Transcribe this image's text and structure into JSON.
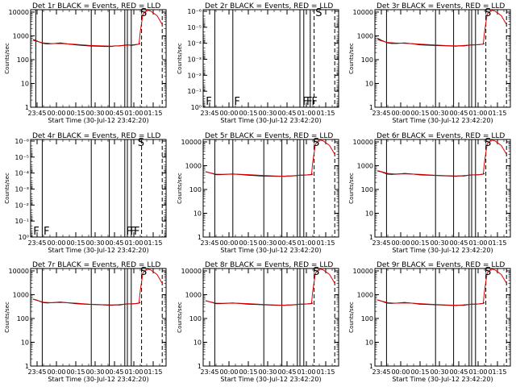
{
  "colors": {
    "events": "#000000",
    "lld": "#e00000",
    "axes": "#000000"
  },
  "chart_data": [
    {
      "type": "line",
      "title": "Det 1r BLACK = Events, RED = LLD",
      "xlabel": "Start Time (30-Jul-12 23:42:20)",
      "ylabel": "Counts/sec",
      "x_tick_labels": [
        "23:45",
        "00:00",
        "00:15",
        "00:30",
        "00:45",
        "01:00",
        "01:15"
      ],
      "y_tick_labels": [
        "1",
        "10",
        "100",
        "1000",
        "10000"
      ],
      "ylim_exp": [
        0,
        4.1
      ],
      "x_unit": "minutes after 23:45",
      "event_lines": [
        -1,
        4,
        42,
        56,
        68,
        70,
        73
      ],
      "dashed_lines": [
        81,
        97
      ],
      "markers": [
        {
          "label": "S",
          "x": 80
        }
      ],
      "series": [
        {
          "name": "Events",
          "x": [
            -3,
            0,
            3,
            5,
            8,
            12,
            18,
            25,
            30,
            40,
            52,
            58,
            60,
            62,
            64,
            67,
            70,
            73,
            76,
            79,
            80
          ],
          "y": [
            700,
            600,
            520,
            480,
            460,
            470,
            500,
            450,
            420,
            380,
            360,
            360,
            380,
            380,
            380,
            400,
            420,
            400,
            420,
            450,
            480
          ]
        },
        {
          "name": "LLD",
          "x": [
            -3,
            0,
            5,
            10,
            20,
            30,
            40,
            50,
            58,
            63,
            68,
            73,
            76,
            79,
            80,
            82,
            85,
            88,
            93,
            97
          ],
          "y": [
            650,
            580,
            500,
            480,
            470,
            440,
            400,
            380,
            370,
            380,
            400,
            420,
            430,
            450,
            1500,
            8000,
            12000,
            11000,
            7000,
            3000
          ]
        }
      ]
    },
    {
      "type": "line",
      "title": "Det 2r BLACK = Events, RED = LLD",
      "xlabel": "Start Time (30-Jul-12 23:42:20)",
      "ylabel": "Counts/sec",
      "x_tick_labels": [
        "23:45",
        "00:00",
        "00:15",
        "00:30",
        "00:45",
        "01:00",
        "01:15"
      ],
      "y_tick_labels": [
        "10⁻⁶",
        "10⁻⁵",
        "10⁻⁴",
        "10⁻³",
        "10⁻²",
        "10⁻¹",
        "10⁰"
      ],
      "ylim_exp": [
        -6,
        0.1
      ],
      "inverted_labels": true,
      "x_unit": "minutes after 23:45",
      "event_lines": [
        4,
        18,
        70,
        73,
        78
      ],
      "dashed_lines": [
        81,
        97
      ],
      "markers": [
        {
          "label": "F",
          "x": -3
        },
        {
          "label": "F",
          "x": 19
        },
        {
          "label": "F",
          "x": 72
        },
        {
          "label": "F",
          "x": 75
        },
        {
          "label": "F",
          "x": 79
        },
        {
          "label": "S",
          "x": 82
        }
      ],
      "series": []
    },
    {
      "type": "line",
      "title": "Det 3r BLACK = Events, RED = LLD",
      "xlabel": "Start Time (30-Jul-12 23:42:20)",
      "ylabel": "Counts/sec",
      "x_tick_labels": [
        "23:45",
        "00:00",
        "00:15",
        "00:30",
        "00:45",
        "01:00",
        "01:15"
      ],
      "y_tick_labels": [
        "1",
        "10",
        "100",
        "1000",
        "10000"
      ],
      "ylim_exp": [
        0,
        4.1
      ],
      "x_unit": "minutes after 23:45",
      "event_lines": [
        4,
        42,
        56,
        68,
        70,
        73
      ],
      "dashed_lines": [
        81,
        97
      ],
      "markers": [
        {
          "label": "S",
          "x": 80
        }
      ],
      "series": [
        {
          "name": "Events",
          "x": [
            -3,
            0,
            3,
            5,
            8,
            12,
            18,
            25,
            30,
            40,
            52,
            58,
            60,
            62,
            64,
            67,
            70,
            73,
            76,
            79,
            80
          ],
          "y": [
            800,
            650,
            560,
            500,
            480,
            480,
            500,
            460,
            420,
            400,
            380,
            370,
            380,
            380,
            380,
            400,
            420,
            420,
            430,
            450,
            480
          ]
        },
        {
          "name": "LLD",
          "x": [
            -3,
            0,
            5,
            10,
            20,
            30,
            40,
            50,
            58,
            63,
            68,
            73,
            76,
            79,
            80,
            82,
            85,
            88,
            93,
            97
          ],
          "y": [
            700,
            620,
            520,
            500,
            480,
            450,
            420,
            390,
            380,
            390,
            410,
            420,
            430,
            450,
            1500,
            8000,
            12000,
            11000,
            7000,
            3000
          ]
        }
      ]
    },
    {
      "type": "line",
      "title": "Det 4r BLACK = Events, RED = LLD",
      "xlabel": "Start Time (30-Jul-12 23:42:20)",
      "ylabel": "Counts/sec",
      "x_tick_labels": [
        "23:45",
        "00:00",
        "00:15",
        "00:30",
        "00:45",
        "01:00",
        "01:15"
      ],
      "y_tick_labels": [
        "10⁻⁶",
        "10⁻⁵",
        "10⁻⁴",
        "10⁻³",
        "10⁻²",
        "10⁻¹",
        "10⁰"
      ],
      "ylim_exp": [
        -6,
        0.1
      ],
      "inverted_labels": true,
      "x_unit": "minutes after 23:45",
      "event_lines": [
        4,
        42,
        56,
        68,
        70,
        73
      ],
      "dashed_lines": [
        81,
        97
      ],
      "markers": [
        {
          "label": "F",
          "x": -3
        },
        {
          "label": "F",
          "x": 5
        },
        {
          "label": "F",
          "x": 69
        },
        {
          "label": "F",
          "x": 72
        },
        {
          "label": "F",
          "x": 75
        },
        {
          "label": "S",
          "x": 78
        }
      ],
      "series": []
    },
    {
      "type": "line",
      "title": "Det 5r BLACK = Events, RED = LLD",
      "xlabel": "Start Time (30-Jul-12 23:42:20)",
      "ylabel": "Counts/sec",
      "x_tick_labels": [
        "23:45",
        "00:00",
        "00:15",
        "00:30",
        "00:45",
        "01:00",
        "01:15"
      ],
      "y_tick_labels": [
        "1",
        "10",
        "100",
        "1000",
        "10000"
      ],
      "ylim_exp": [
        0,
        4.1
      ],
      "x_unit": "minutes after 23:45",
      "event_lines": [
        4,
        18,
        42,
        56,
        68,
        70,
        73
      ],
      "dashed_lines": [
        81,
        97
      ],
      "markers": [
        {
          "label": "S",
          "x": 80
        }
      ],
      "series": [
        {
          "name": "Events",
          "x": [
            -3,
            0,
            3,
            5,
            8,
            12,
            18,
            25,
            30,
            40,
            52,
            58,
            60,
            62,
            64,
            67,
            70,
            73,
            76,
            79,
            80
          ],
          "y": [
            550,
            500,
            450,
            420,
            420,
            430,
            450,
            420,
            400,
            370,
            360,
            360,
            370,
            370,
            370,
            380,
            400,
            400,
            410,
            420,
            450
          ]
        },
        {
          "name": "LLD",
          "x": [
            -3,
            0,
            5,
            10,
            20,
            30,
            40,
            50,
            58,
            63,
            68,
            73,
            76,
            79,
            80,
            82,
            85,
            88,
            93,
            97
          ],
          "y": [
            560,
            500,
            440,
            430,
            440,
            420,
            390,
            370,
            360,
            370,
            390,
            400,
            410,
            430,
            1500,
            8000,
            12000,
            11000,
            7000,
            3000
          ]
        }
      ]
    },
    {
      "type": "line",
      "title": "Det 6r BLACK = Events, RED = LLD",
      "xlabel": "Start Time (30-Jul-12 23:42:20)",
      "ylabel": "Counts/sec",
      "x_tick_labels": [
        "23:45",
        "00:00",
        "00:15",
        "00:30",
        "00:45",
        "01:00",
        "01:15"
      ],
      "y_tick_labels": [
        "1",
        "10",
        "100",
        "1000",
        "10000"
      ],
      "ylim_exp": [
        0,
        4.1
      ],
      "x_unit": "minutes after 23:45",
      "event_lines": [
        4,
        42,
        56,
        68,
        70,
        73
      ],
      "dashed_lines": [
        81,
        97
      ],
      "markers": [
        {
          "label": "S",
          "x": 80
        }
      ],
      "series": [
        {
          "name": "Events",
          "x": [
            -3,
            0,
            3,
            5,
            8,
            12,
            18,
            25,
            30,
            40,
            52,
            58,
            60,
            62,
            64,
            67,
            70,
            73,
            76,
            79,
            80
          ],
          "y": [
            600,
            550,
            480,
            440,
            430,
            440,
            470,
            440,
            410,
            390,
            370,
            360,
            370,
            370,
            370,
            390,
            410,
            410,
            420,
            440,
            470
          ]
        },
        {
          "name": "LLD",
          "x": [
            -3,
            0,
            5,
            10,
            20,
            30,
            40,
            50,
            58,
            63,
            68,
            73,
            76,
            79,
            80,
            82,
            85,
            88,
            93,
            97
          ],
          "y": [
            620,
            560,
            470,
            450,
            450,
            430,
            400,
            380,
            370,
            380,
            400,
            410,
            420,
            440,
            1500,
            8000,
            12000,
            11000,
            7000,
            3000
          ]
        }
      ]
    },
    {
      "type": "line",
      "title": "Det 7r BLACK = Events, RED = LLD",
      "xlabel": "Start Time (30-Jul-12 23:42:20)",
      "ylabel": "Counts/sec",
      "x_tick_labels": [
        "23:45",
        "00:00",
        "00:15",
        "00:30",
        "00:45",
        "01:00",
        "01:15"
      ],
      "y_tick_labels": [
        "1",
        "10",
        "100",
        "1000",
        "10000"
      ],
      "ylim_exp": [
        0,
        4.1
      ],
      "x_unit": "minutes after 23:45",
      "event_lines": [
        4,
        42,
        56,
        68,
        70,
        73
      ],
      "dashed_lines": [
        81,
        97
      ],
      "markers": [
        {
          "label": "S",
          "x": 80
        }
      ],
      "series": [
        {
          "name": "Events",
          "x": [
            -3,
            0,
            3,
            5,
            8,
            12,
            18,
            25,
            30,
            40,
            52,
            58,
            60,
            62,
            64,
            67,
            70,
            73,
            76,
            79,
            80
          ],
          "y": [
            650,
            580,
            500,
            460,
            450,
            460,
            490,
            450,
            420,
            390,
            370,
            360,
            370,
            370,
            370,
            390,
            410,
            410,
            420,
            440,
            470
          ]
        },
        {
          "name": "LLD",
          "x": [
            -3,
            0,
            5,
            10,
            20,
            30,
            40,
            50,
            58,
            63,
            68,
            73,
            76,
            79,
            80,
            82,
            85,
            88,
            93,
            97
          ],
          "y": [
            640,
            570,
            480,
            460,
            470,
            440,
            400,
            380,
            370,
            380,
            400,
            410,
            420,
            440,
            1500,
            8000,
            12000,
            11000,
            7000,
            3000
          ]
        }
      ]
    },
    {
      "type": "line",
      "title": "Det 8r BLACK = Events, RED = LLD",
      "xlabel": "Start Time (30-Jul-12 23:42:20)",
      "ylabel": "Counts/sec",
      "x_tick_labels": [
        "23:45",
        "00:00",
        "00:15",
        "00:30",
        "00:45",
        "01:00",
        "01:15"
      ],
      "y_tick_labels": [
        "1",
        "10",
        "100",
        "1000",
        "10000"
      ],
      "ylim_exp": [
        0,
        4.1
      ],
      "x_unit": "minutes after 23:45",
      "event_lines": [
        4,
        42,
        56,
        68,
        70,
        73
      ],
      "dashed_lines": [
        81,
        97
      ],
      "markers": [
        {
          "label": "S",
          "x": 80
        }
      ],
      "series": [
        {
          "name": "Events",
          "x": [
            -3,
            0,
            3,
            5,
            8,
            12,
            18,
            25,
            30,
            40,
            52,
            58,
            60,
            62,
            64,
            67,
            70,
            73,
            76,
            79,
            80
          ],
          "y": [
            550,
            500,
            450,
            420,
            420,
            430,
            450,
            420,
            400,
            380,
            360,
            360,
            370,
            370,
            370,
            380,
            400,
            400,
            410,
            420,
            450
          ]
        },
        {
          "name": "LLD",
          "x": [
            -3,
            0,
            5,
            10,
            20,
            30,
            40,
            50,
            58,
            63,
            68,
            73,
            76,
            79,
            80,
            82,
            85,
            88,
            93,
            97
          ],
          "y": [
            560,
            500,
            440,
            430,
            440,
            420,
            390,
            370,
            360,
            370,
            390,
            400,
            410,
            430,
            1500,
            8000,
            12000,
            11000,
            7000,
            3000
          ]
        }
      ]
    },
    {
      "type": "line",
      "title": "Det 9r BLACK = Events, RED = LLD",
      "xlabel": "Start Time (30-Jul-12 23:42:20)",
      "ylabel": "Counts/sec",
      "x_tick_labels": [
        "23:45",
        "00:00",
        "00:15",
        "00:30",
        "00:45",
        "01:00",
        "01:15"
      ],
      "y_tick_labels": [
        "1",
        "10",
        "100",
        "1000",
        "10000"
      ],
      "ylim_exp": [
        0,
        4.1
      ],
      "x_unit": "minutes after 23:45",
      "event_lines": [
        4,
        42,
        56,
        68,
        70,
        73
      ],
      "dashed_lines": [
        81,
        97
      ],
      "markers": [
        {
          "label": "S",
          "x": 80
        }
      ],
      "series": [
        {
          "name": "Events",
          "x": [
            -3,
            0,
            3,
            5,
            8,
            12,
            18,
            25,
            30,
            40,
            52,
            58,
            60,
            62,
            64,
            67,
            70,
            73,
            76,
            79,
            80
          ],
          "y": [
            600,
            540,
            470,
            440,
            430,
            440,
            470,
            430,
            400,
            380,
            360,
            350,
            360,
            360,
            360,
            380,
            400,
            400,
            410,
            430,
            460
          ]
        },
        {
          "name": "LLD",
          "x": [
            -3,
            0,
            5,
            10,
            20,
            30,
            40,
            50,
            58,
            63,
            68,
            73,
            76,
            79,
            80,
            82,
            85,
            88,
            93,
            97
          ],
          "y": [
            600,
            540,
            460,
            440,
            450,
            420,
            390,
            370,
            360,
            370,
            390,
            400,
            410,
            430,
            1500,
            8000,
            12000,
            11000,
            7000,
            3000
          ]
        }
      ]
    }
  ]
}
